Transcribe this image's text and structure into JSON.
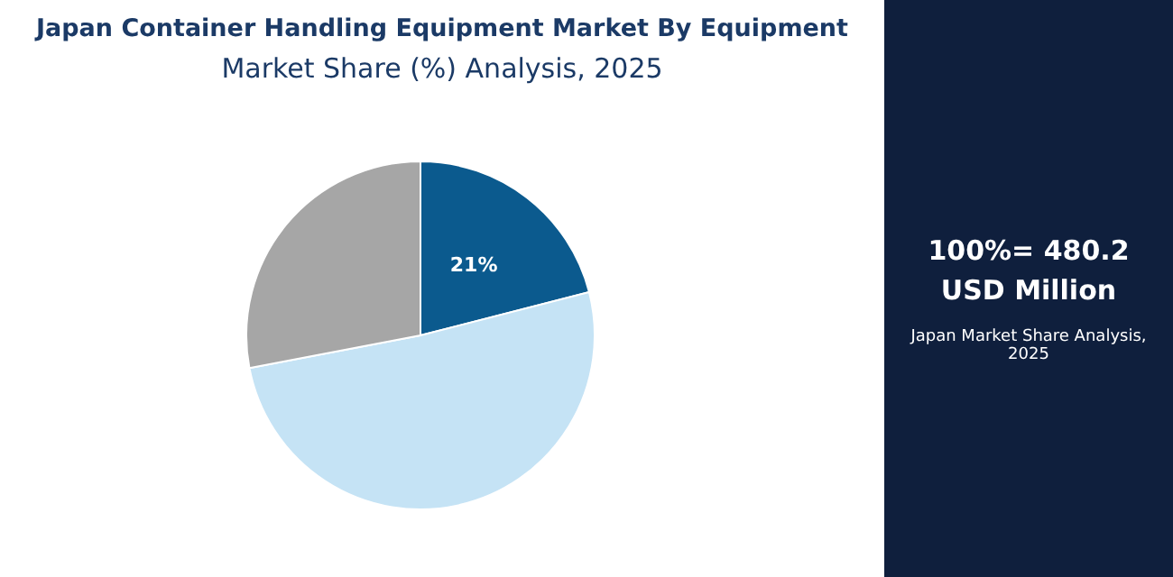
{
  "chart_data": {
    "type": "pie",
    "title": "Japan Container Handling Equipment Market By Equipment",
    "subtitle": "Market Share (%) Analysis, 2025",
    "categories": [
      null,
      null,
      null
    ],
    "values": [
      21,
      51,
      28
    ],
    "colors": [
      "#0b5a8e",
      "#c5e3f5",
      "#a6a6a6"
    ],
    "value_labels": [
      "21%",
      null,
      null
    ],
    "legend": false,
    "annotations": [
      "100%= 480.2 USD Million",
      "Japan Market Share Analysis, 2025"
    ]
  }
}
